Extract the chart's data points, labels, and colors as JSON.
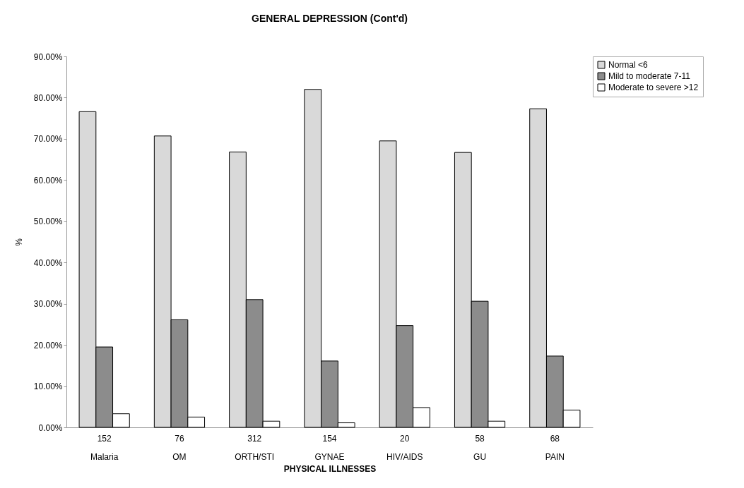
{
  "chart_data": {
    "type": "bar",
    "title": "GENERAL DEPRESSION (Cont'd)",
    "xlabel": "PHYSICAL ILLNESSES",
    "ylabel": "%",
    "categories": [
      "152\nMalaria",
      "76\nOM",
      "312\nORTH/STI",
      "154\nGYNAE",
      "20\nHIV/AIDS",
      "58\nGU",
      "68\nPAIN"
    ],
    "series": [
      {
        "name": "Normal <6",
        "color": "#d9d9d9",
        "values": [
          76.6,
          70.7,
          66.8,
          82.0,
          69.5,
          66.7,
          77.3
        ]
      },
      {
        "name": "Mild to moderate 7-11",
        "color": "#8c8c8c",
        "values": [
          19.5,
          26.1,
          31.0,
          16.1,
          24.7,
          30.6,
          17.3
        ]
      },
      {
        "name": "Moderate to severe >12",
        "color": "#ffffff",
        "values": [
          3.3,
          2.5,
          1.5,
          1.1,
          4.8,
          1.5,
          4.2
        ]
      }
    ],
    "ylim": [
      0,
      90
    ],
    "yticks": [
      {
        "value": 0,
        "label": "0.00%"
      },
      {
        "value": 10,
        "label": "10.00%"
      },
      {
        "value": 20,
        "label": "20.00%"
      },
      {
        "value": 30,
        "label": "30.00%"
      },
      {
        "value": 40,
        "label": "40.00%"
      },
      {
        "value": 50,
        "label": "50.00%"
      },
      {
        "value": 60,
        "label": "60.00%"
      },
      {
        "value": 70,
        "label": "70.00%"
      },
      {
        "value": 80,
        "label": "80.00%"
      },
      {
        "value": 90,
        "label": "90.00%"
      }
    ],
    "legend": "right",
    "grid": false
  }
}
